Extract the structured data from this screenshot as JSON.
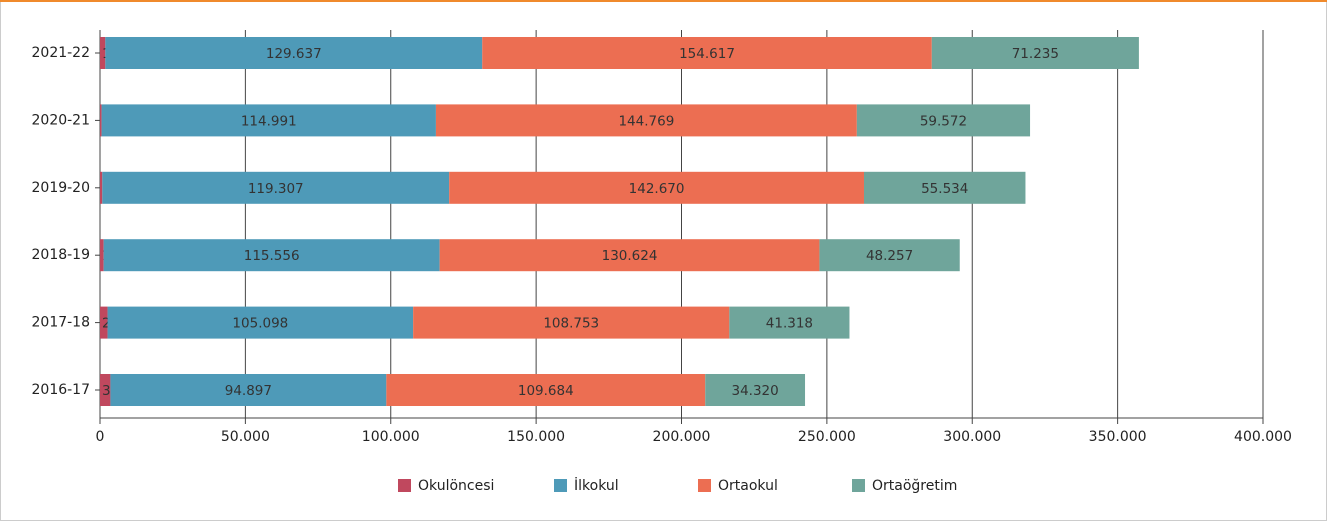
{
  "chart_data": {
    "type": "stacked-bar-horizontal",
    "categories": [
      "2021-22",
      "2020-21",
      "2019-20",
      "2018-19",
      "2017-18",
      "2016-17"
    ],
    "series": [
      {
        "name": "Okulöncesi",
        "color": "#c0485e",
        "values": [
          1830,
          549,
          789,
          1260,
          2601,
          3585
        ],
        "value_labels": [
          "1.830",
          "549",
          "789",
          "1.260",
          "2.601",
          "3.585"
        ]
      },
      {
        "name": "İlkokul",
        "color": "#4e9ab8",
        "values": [
          129637,
          114991,
          119307,
          115556,
          105098,
          94897
        ],
        "value_labels": [
          "129.637",
          "114.991",
          "119.307",
          "115.556",
          "105.098",
          "94.897"
        ]
      },
      {
        "name": "Ortaokul",
        "color": "#ec6e52",
        "values": [
          154617,
          144769,
          142670,
          130624,
          108753,
          109684
        ],
        "value_labels": [
          "154.617",
          "144.769",
          "142.670",
          "130.624",
          "108.753",
          "109.684"
        ]
      },
      {
        "name": "Ortaöğretim",
        "color": "#6fa59b",
        "values": [
          71235,
          59572,
          55534,
          48257,
          41318,
          34320
        ],
        "value_labels": [
          "71.235",
          "59.572",
          "55.534",
          "48.257",
          "41.318",
          "34.320"
        ]
      }
    ],
    "xlim": [
      0,
      400000
    ],
    "xticks": [
      0,
      {
        "value": 50000,
        "label": "50.000"
      },
      {
        "value": 100000,
        "label": "100.000"
      },
      {
        "value": 150000,
        "label": "150.000"
      },
      {
        "value": 200000,
        "label": "200.000"
      },
      {
        "value": 250000,
        "label": "250.000"
      },
      {
        "value": 300000,
        "label": "300.000"
      },
      {
        "value": 350000,
        "label": "350.000"
      },
      {
        "value": 400000,
        "label": "400.000"
      }
    ],
    "grid": true,
    "legend": "bottom"
  }
}
